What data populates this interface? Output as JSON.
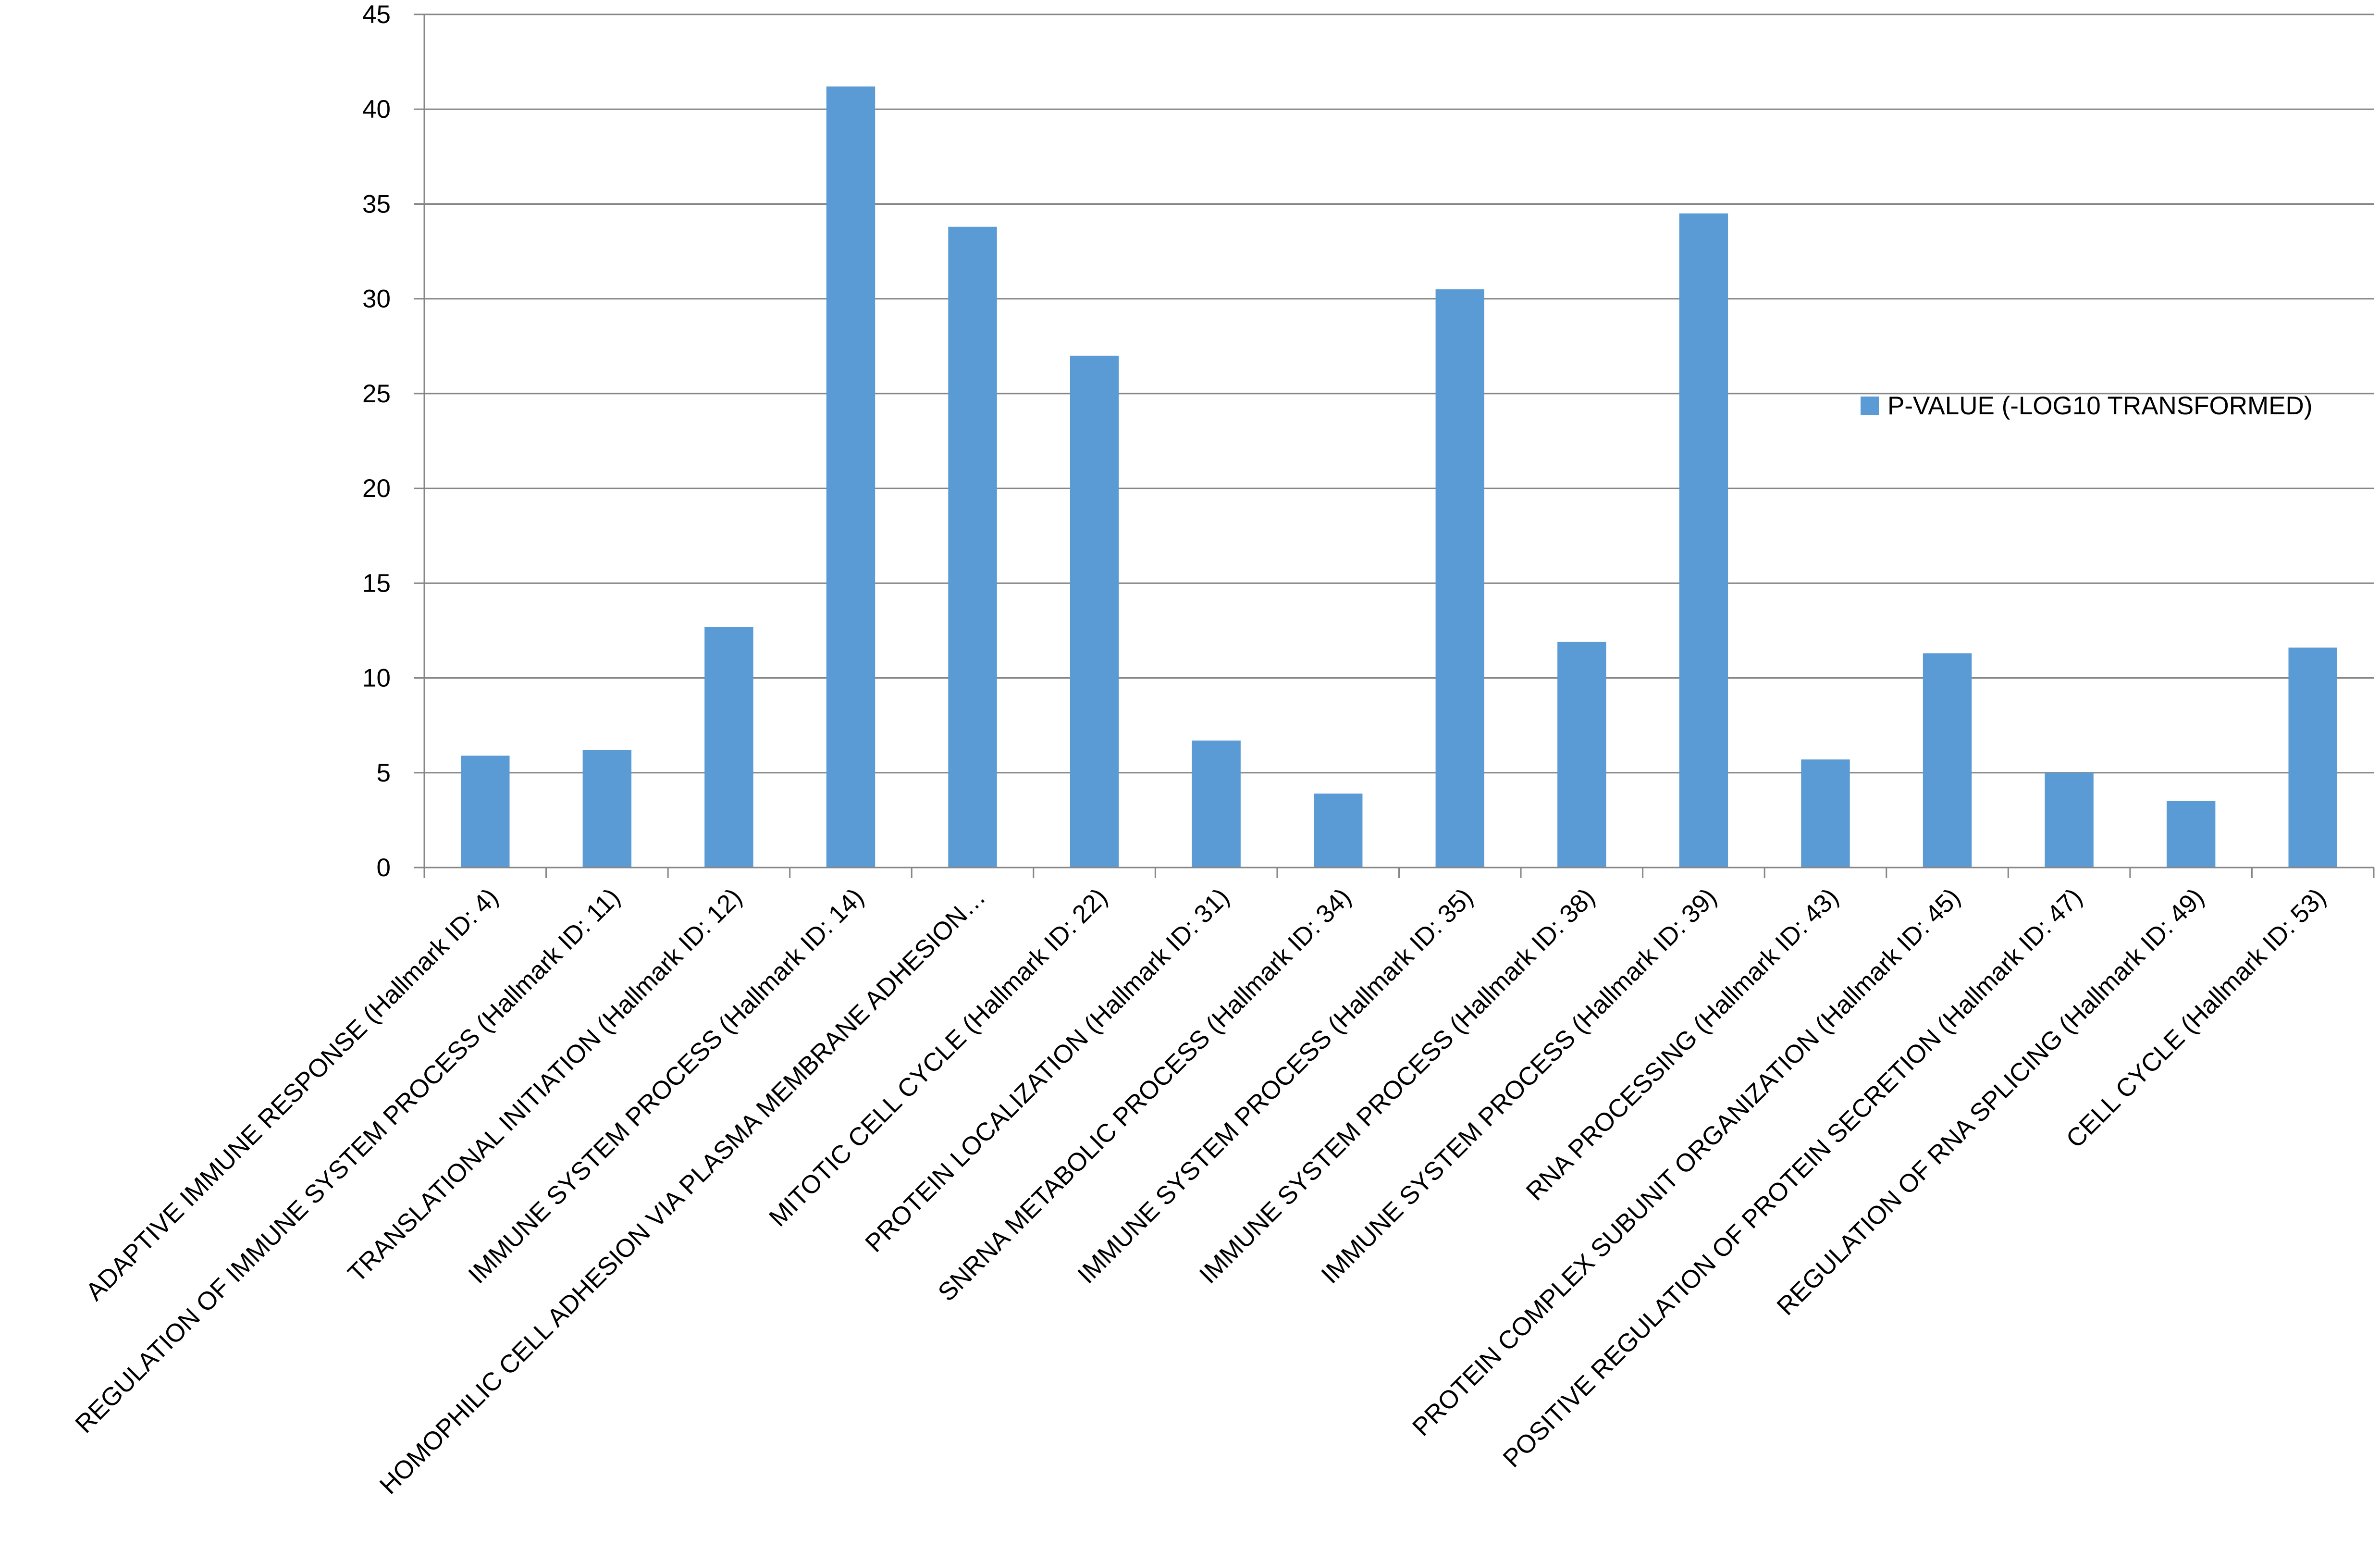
{
  "chart_data": {
    "type": "bar",
    "categories": [
      "ADAPTIVE IMMUNE RESPONSE (Hallmark ID: 4)",
      "REGULATION OF IMMUNE SYSTEM PROCESS (Hallmark ID: 11)",
      "TRANSLATIONAL INITIATION (Hallmark ID: 12)",
      "IMMUNE SYSTEM PROCESS (Hallmark ID: 14)",
      "HOMOPHILIC CELL ADHESION VIA PLASMA MEMBRANE ADHESION…",
      "MITOTIC CELL CYCLE (Hallmark ID: 22)",
      "PROTEIN LOCALIZATION (Hallmark ID: 31)",
      "SNRNA METABOLIC PROCESS (Hallmark ID: 34)",
      "IMMUNE SYSTEM PROCESS (Hallmark ID: 35)",
      "IMMUNE SYSTEM PROCESS (Hallmark ID: 38)",
      "IMMUNE SYSTEM PROCESS (Hallmark ID: 39)",
      "RNA PROCESSING (Hallmark ID: 43)",
      "PROTEIN COMPLEX SUBUNIT ORGANIZATION (Hallmark ID: 45)",
      "POSITIVE REGULATION OF PROTEIN SECRETION (Hallmark ID: 47)",
      "REGULATION OF RNA SPLICING (Hallmark ID: 49)",
      "CELL CYCLE (Hallmark ID: 53)"
    ],
    "series": [
      {
        "name": "P-VALUE (-LOG10 TRANSFORMED)",
        "color": "#5B9BD5",
        "values": [
          5.9,
          6.2,
          12.7,
          41.2,
          33.8,
          27.0,
          6.7,
          3.9,
          30.5,
          11.9,
          34.5,
          5.7,
          11.3,
          5.0,
          3.5,
          11.6
        ]
      }
    ],
    "yticks": [
      "0",
      "5",
      "10",
      "15",
      "20",
      "25",
      "30",
      "35",
      "40",
      "45"
    ],
    "ylim": [
      0,
      45
    ],
    "grid": true,
    "gridline_color": "#868686",
    "legend_position": "right"
  }
}
